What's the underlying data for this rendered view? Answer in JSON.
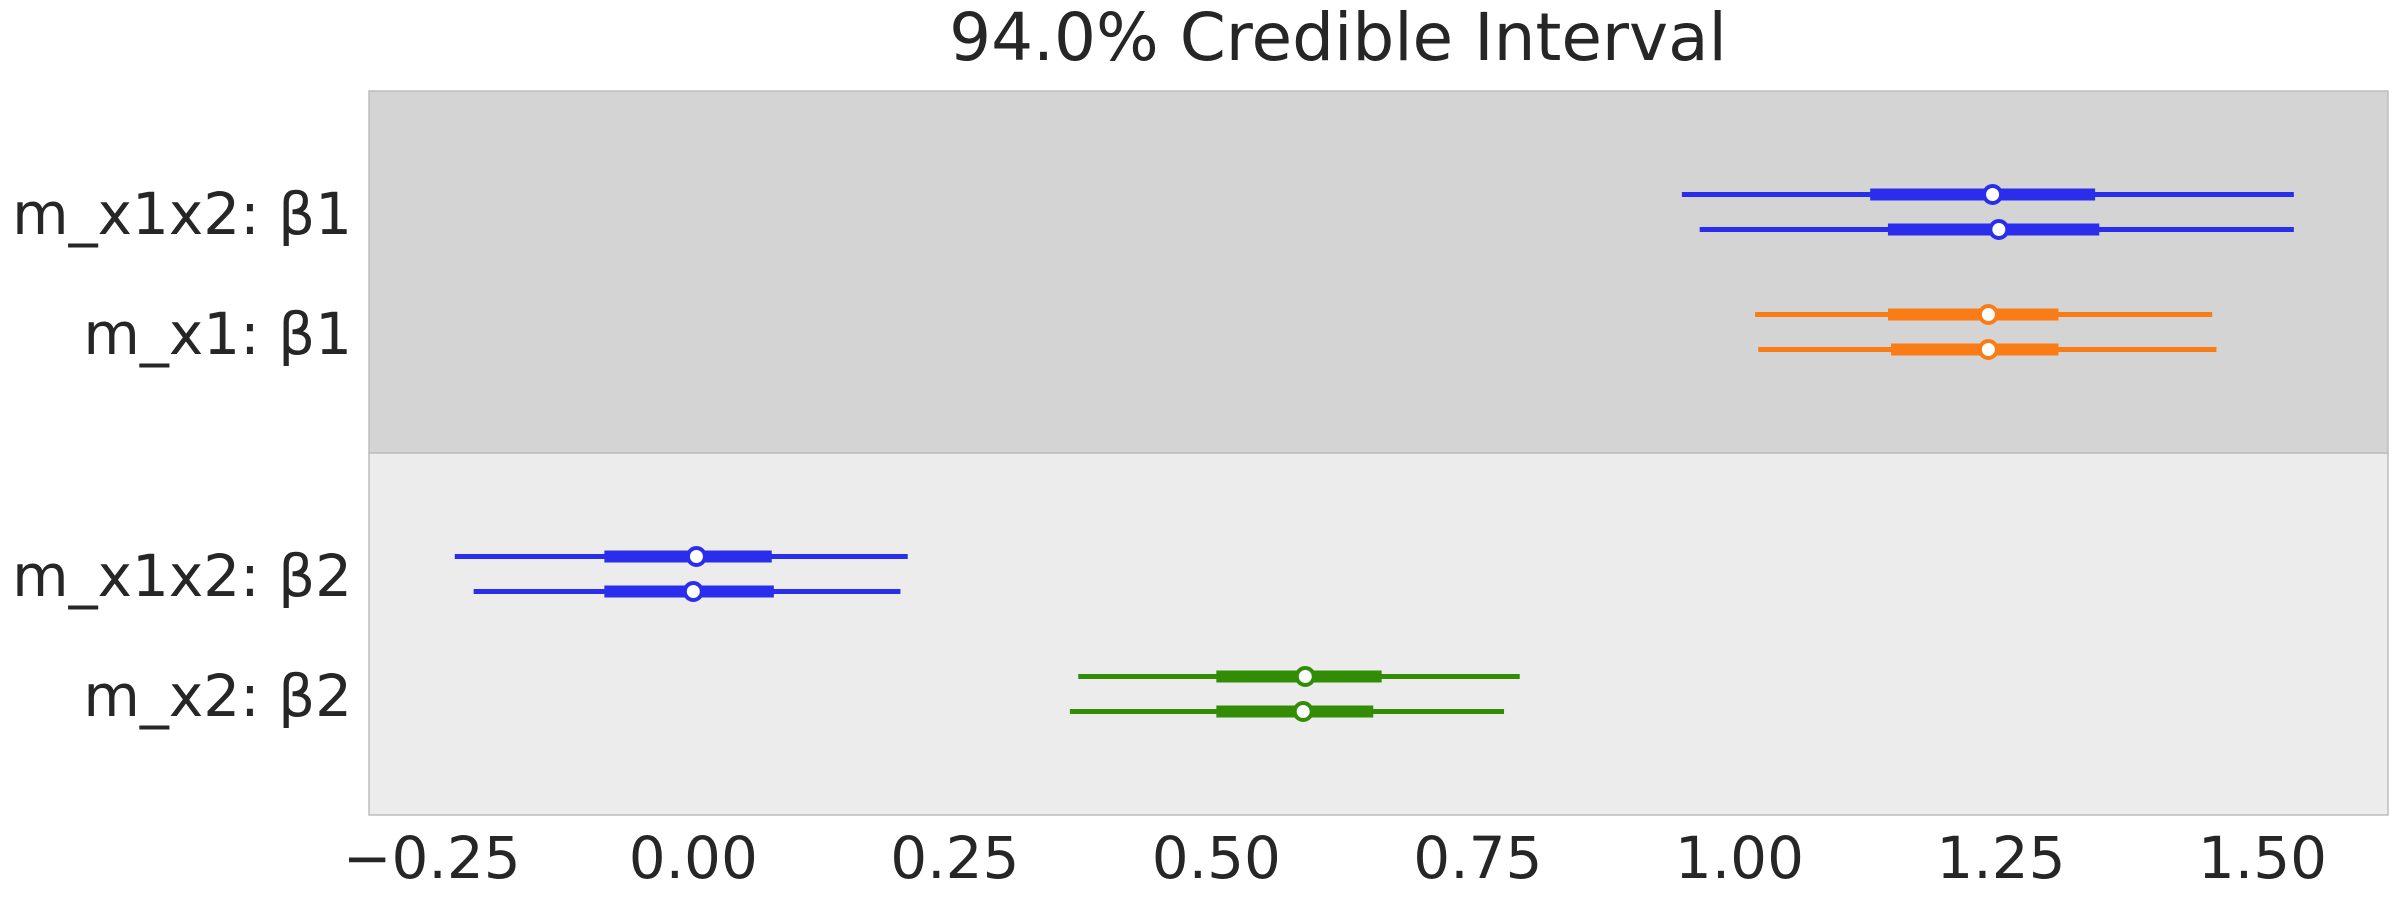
{
  "chart_data": {
    "type": "forest",
    "title": "94.0% Credible Interval",
    "xlabel": "",
    "ylabel": "",
    "xlim": [
      -0.31,
      1.62
    ],
    "grid": false,
    "xticks": [
      -0.25,
      0.0,
      0.25,
      0.5,
      0.75,
      1.0,
      1.25,
      1.5
    ],
    "xtick_labels": [
      "−0.25",
      "0.00",
      "0.25",
      "0.50",
      "0.75",
      "1.00",
      "1.25",
      "1.50"
    ],
    "colors": {
      "m_x1x2": "#2a2eec",
      "m_x1": "#fa7c17",
      "m_x2": "#328c06",
      "band_dark": "#d4d4d4",
      "band_light": "#ececec"
    },
    "bands": [
      {
        "group": "β1",
        "rows": [
          {
            "label": "m_x1x2: β1",
            "model": "m_x1x2",
            "chains": [
              {
                "hdi_low": 0.945,
                "hdi_high": 1.53,
                "q25": 1.125,
                "q75": 1.34,
                "median": 1.242
              },
              {
                "hdi_low": 0.962,
                "hdi_high": 1.53,
                "q25": 1.142,
                "q75": 1.344,
                "median": 1.248
              }
            ]
          },
          {
            "label": "m_x1: β1",
            "model": "m_x1",
            "chains": [
              {
                "hdi_low": 1.015,
                "hdi_high": 1.452,
                "q25": 1.142,
                "q75": 1.305,
                "median": 1.238
              },
              {
                "hdi_low": 1.018,
                "hdi_high": 1.456,
                "q25": 1.145,
                "q75": 1.305,
                "median": 1.238
              }
            ]
          }
        ]
      },
      {
        "group": "β2",
        "rows": [
          {
            "label": "m_x1x2: β2",
            "model": "m_x1x2",
            "chains": [
              {
                "hdi_low": -0.228,
                "hdi_high": 0.205,
                "q25": -0.085,
                "q75": 0.075,
                "median": 0.003
              },
              {
                "hdi_low": -0.21,
                "hdi_high": 0.198,
                "q25": -0.085,
                "q75": 0.077,
                "median": 0.0
              }
            ]
          },
          {
            "label": "m_x2: β2",
            "model": "m_x2",
            "chains": [
              {
                "hdi_low": 0.368,
                "hdi_high": 0.79,
                "q25": 0.5,
                "q75": 0.658,
                "median": 0.585
              },
              {
                "hdi_low": 0.36,
                "hdi_high": 0.775,
                "q25": 0.5,
                "q75": 0.65,
                "median": 0.583
              }
            ]
          }
        ]
      }
    ]
  }
}
